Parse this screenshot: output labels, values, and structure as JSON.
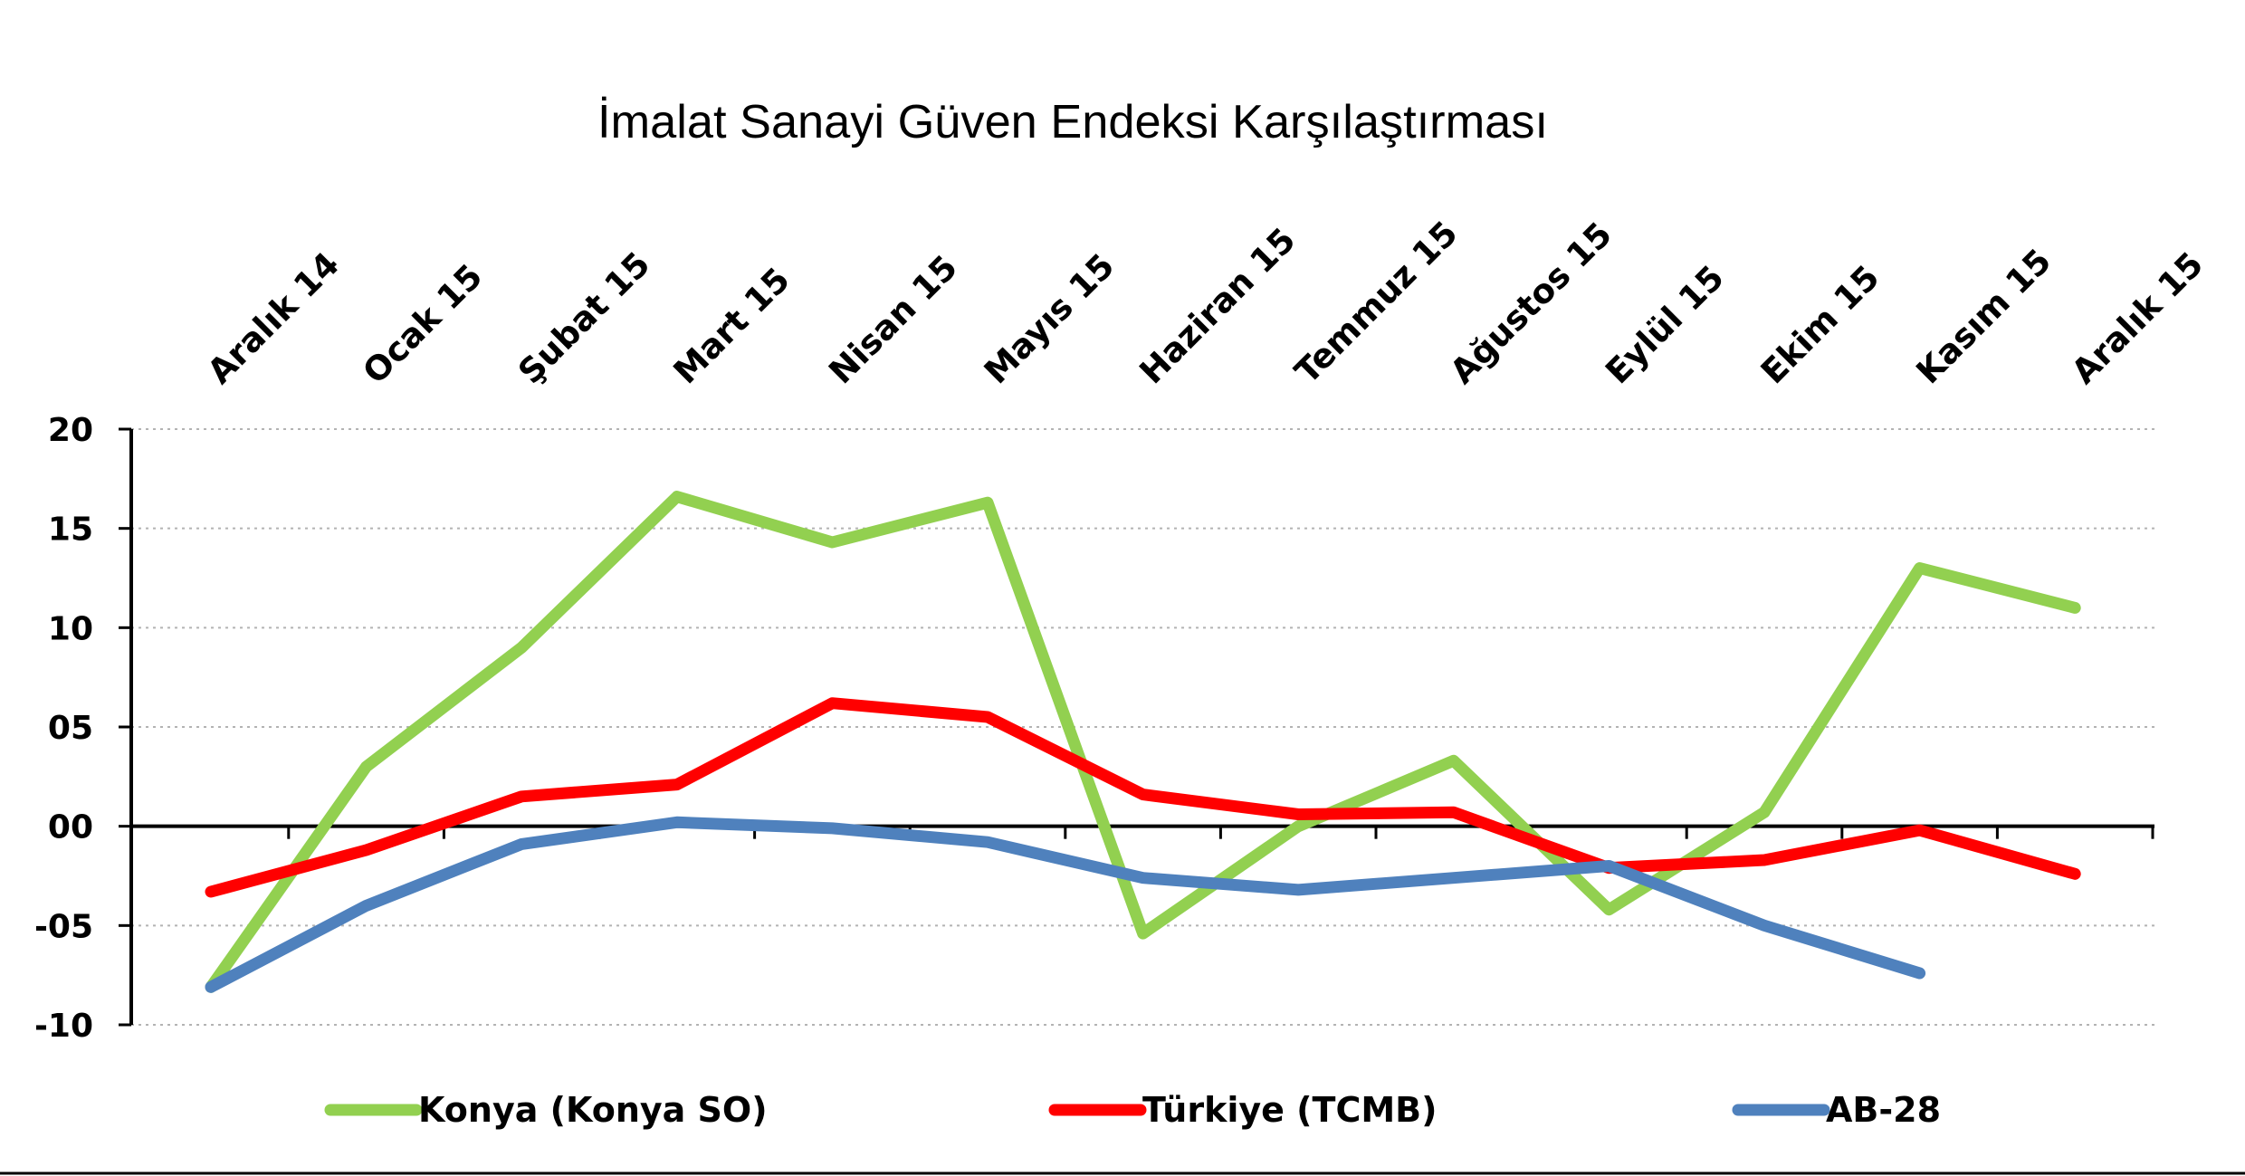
{
  "chart_data": {
    "type": "line",
    "title": "İmalat Sanayi Güven Endeksi Karşılaştırması",
    "xlabel": "",
    "ylabel": "",
    "categories": [
      "Aralık 14",
      "Ocak 15",
      "Şubat 15",
      "Mart 15",
      "Nisan 15",
      "Mayıs 15",
      "Haziran 15",
      "Temmuz 15",
      "Ağustos 15",
      "Eylül 15",
      "Ekim 15",
      "Kasım 15",
      "Aralık 15"
    ],
    "ylim": [
      -10,
      20
    ],
    "y_ticks": [
      20,
      15,
      10,
      5,
      0,
      -5,
      -10
    ],
    "y_tick_labels": [
      "20",
      "15",
      "10",
      "05",
      "00",
      "-05",
      "-10"
    ],
    "grid": "horizontal dotted",
    "legend_position": "bottom",
    "series": [
      {
        "name": "Konya (Konya SO)",
        "color": "#92d050",
        "values": [
          -8.1,
          3.0,
          9.0,
          16.6,
          14.3,
          16.3,
          -5.4,
          0.0,
          3.3,
          -4.2,
          0.7,
          13.0,
          11.0
        ]
      },
      {
        "name": "Türkiye (TCMB)",
        "color": "#ff0000",
        "values": [
          -3.3,
          -1.2,
          1.5,
          2.1,
          6.2,
          5.5,
          1.6,
          0.6,
          0.7,
          -2.1,
          -1.7,
          -0.2,
          -2.4
        ]
      },
      {
        "name": "AB-28",
        "color": "#4f81bd",
        "values": [
          -8.1,
          -4.0,
          -0.9,
          0.2,
          -0.1,
          -0.8,
          -2.6,
          -3.2,
          -2.6,
          -2.0,
          -5.0,
          -7.4,
          null
        ]
      }
    ]
  }
}
